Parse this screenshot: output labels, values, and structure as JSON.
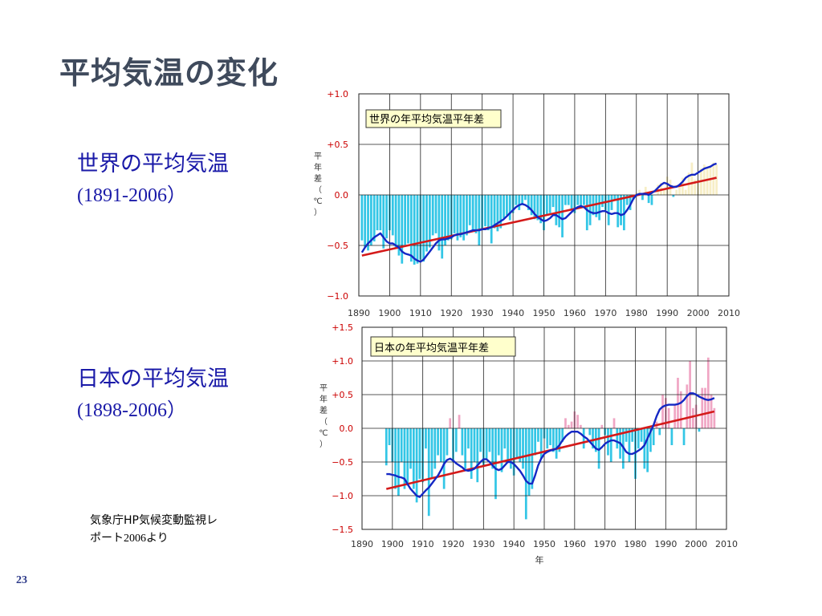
{
  "slide": {
    "title": "平均気温の変化",
    "page_number": "23",
    "source_line1": "気象庁HP気候変動監視レ",
    "source_line2_prefix": "ポート",
    "source_line2_year": "2006",
    "source_line2_suffix": "より"
  },
  "labels": {
    "world_title": "世界の平均気温",
    "world_range": "(1891-2006）",
    "japan_title": "日本の平均気温",
    "japan_range": "(1898-2006）"
  },
  "colors": {
    "bar": "#33c6e6",
    "pos_bar_world": "#f7eec6",
    "pos_bar_japan": "#f0a6c4",
    "smooth_line": "#1427c4",
    "trend_line": "#d41a1a",
    "grid": "#222222",
    "legend_bg": "#ffffcc",
    "tick_red": "#cc0000"
  },
  "chart_data": [
    {
      "type": "bar",
      "title": "世界の年平均気温平年差",
      "ylabel": "平年差（℃）",
      "xlabel": "",
      "xlim": [
        1890,
        2010
      ],
      "ylim": [
        -1.0,
        1.0
      ],
      "y_ticks": [
        1.0,
        0.5,
        0.0,
        -0.5,
        -1.0
      ],
      "y_tick_labels": [
        "+1.0",
        "+0.5",
        "0.0",
        "−0.5",
        "−1.0"
      ],
      "x_ticks": [
        1890,
        1900,
        1910,
        1920,
        1930,
        1940,
        1950,
        1960,
        1970,
        1980,
        1990,
        2000,
        2010
      ],
      "x": [
        1891,
        1892,
        1893,
        1894,
        1895,
        1896,
        1897,
        1898,
        1899,
        1900,
        1901,
        1902,
        1903,
        1904,
        1905,
        1906,
        1907,
        1908,
        1909,
        1910,
        1911,
        1912,
        1913,
        1914,
        1915,
        1916,
        1917,
        1918,
        1919,
        1920,
        1921,
        1922,
        1923,
        1924,
        1925,
        1926,
        1927,
        1928,
        1929,
        1930,
        1931,
        1932,
        1933,
        1934,
        1935,
        1936,
        1937,
        1938,
        1939,
        1940,
        1941,
        1942,
        1943,
        1944,
        1945,
        1946,
        1947,
        1948,
        1949,
        1950,
        1951,
        1952,
        1953,
        1954,
        1955,
        1956,
        1957,
        1958,
        1959,
        1960,
        1961,
        1962,
        1963,
        1964,
        1965,
        1966,
        1967,
        1968,
        1969,
        1970,
        1971,
        1972,
        1973,
        1974,
        1975,
        1976,
        1977,
        1978,
        1979,
        1980,
        1981,
        1982,
        1983,
        1984,
        1985,
        1986,
        1987,
        1988,
        1989,
        1990,
        1991,
        1992,
        1993,
        1994,
        1995,
        1996,
        1997,
        1998,
        1999,
        2000,
        2001,
        2002,
        2003,
        2004,
        2005,
        2006
      ],
      "series": [
        {
          "kind": "annual_bars",
          "values": [
            -0.45,
            -0.52,
            -0.55,
            -0.5,
            -0.46,
            -0.35,
            -0.35,
            -0.53,
            -0.43,
            -0.35,
            -0.4,
            -0.52,
            -0.6,
            -0.68,
            -0.5,
            -0.48,
            -0.66,
            -0.69,
            -0.68,
            -0.64,
            -0.66,
            -0.56,
            -0.52,
            -0.4,
            -0.38,
            -0.55,
            -0.63,
            -0.5,
            -0.45,
            -0.44,
            -0.38,
            -0.45,
            -0.42,
            -0.45,
            -0.4,
            -0.3,
            -0.36,
            -0.38,
            -0.5,
            -0.35,
            -0.31,
            -0.35,
            -0.48,
            -0.33,
            -0.36,
            -0.33,
            -0.23,
            -0.2,
            -0.25,
            -0.18,
            -0.1,
            -0.15,
            -0.1,
            -0.05,
            -0.15,
            -0.2,
            -0.24,
            -0.25,
            -0.28,
            -0.35,
            -0.2,
            -0.18,
            -0.12,
            -0.3,
            -0.32,
            -0.42,
            -0.1,
            -0.1,
            -0.15,
            -0.18,
            -0.1,
            -0.12,
            -0.1,
            -0.35,
            -0.3,
            -0.2,
            -0.22,
            -0.25,
            -0.12,
            -0.15,
            -0.3,
            -0.15,
            -0.05,
            -0.32,
            -0.3,
            -0.35,
            -0.1,
            -0.15,
            -0.05,
            0.02,
            0.05,
            -0.05,
            0.08,
            -0.08,
            -0.1,
            0.0,
            0.1,
            0.12,
            0.05,
            0.18,
            0.15,
            -0.02,
            0.05,
            0.1,
            0.17,
            0.05,
            0.22,
            0.32,
            0.15,
            0.15,
            0.26,
            0.3,
            0.28,
            0.28,
            0.32,
            0.3
          ]
        },
        {
          "kind": "smoothed_5yr",
          "values": [
            -0.57,
            -0.52,
            -0.48,
            -0.45,
            -0.42,
            -0.4,
            -0.38,
            -0.42,
            -0.46,
            -0.48,
            -0.48,
            -0.5,
            -0.52,
            -0.56,
            -0.58,
            -0.59,
            -0.6,
            -0.63,
            -0.65,
            -0.66,
            -0.64,
            -0.6,
            -0.56,
            -0.52,
            -0.48,
            -0.45,
            -0.44,
            -0.44,
            -0.43,
            -0.42,
            -0.4,
            -0.39,
            -0.39,
            -0.38,
            -0.37,
            -0.36,
            -0.35,
            -0.35,
            -0.35,
            -0.34,
            -0.34,
            -0.33,
            -0.32,
            -0.3,
            -0.28,
            -0.26,
            -0.24,
            -0.21,
            -0.18,
            -0.15,
            -0.12,
            -0.1,
            -0.09,
            -0.1,
            -0.12,
            -0.15,
            -0.19,
            -0.22,
            -0.24,
            -0.26,
            -0.25,
            -0.23,
            -0.2,
            -0.2,
            -0.22,
            -0.24,
            -0.23,
            -0.2,
            -0.17,
            -0.14,
            -0.12,
            -0.11,
            -0.12,
            -0.15,
            -0.17,
            -0.18,
            -0.18,
            -0.17,
            -0.16,
            -0.16,
            -0.18,
            -0.19,
            -0.18,
            -0.18,
            -0.2,
            -0.19,
            -0.15,
            -0.1,
            -0.04,
            0.0,
            0.01,
            0.01,
            0.01,
            0.0,
            0.02,
            0.04,
            0.07,
            0.1,
            0.12,
            0.11,
            0.09,
            0.08,
            0.08,
            0.1,
            0.13,
            0.17,
            0.19,
            0.2,
            0.2,
            0.22,
            0.24,
            0.26,
            0.27,
            0.28,
            0.3,
            0.31
          ]
        },
        {
          "kind": "linear_trend",
          "x": [
            1891,
            2006
          ],
          "values": [
            -0.6,
            0.17
          ]
        }
      ],
      "grid": true
    },
    {
      "type": "bar",
      "title": "日本の年平均気温平年差",
      "ylabel": "平年差（℃）",
      "xlabel": "年",
      "xlim": [
        1890,
        2010
      ],
      "ylim": [
        -1.5,
        1.5
      ],
      "y_ticks": [
        1.5,
        1.0,
        0.5,
        0.0,
        -0.5,
        -1.0,
        -1.5
      ],
      "y_tick_labels": [
        "+1.5",
        "+1.0",
        "+0.5",
        "0.0",
        "−0.5",
        "−1.0",
        "−1.5"
      ],
      "x_ticks": [
        1890,
        1900,
        1910,
        1920,
        1930,
        1940,
        1950,
        1960,
        1970,
        1980,
        1990,
        2000,
        2010
      ],
      "x": [
        1898,
        1899,
        1900,
        1901,
        1902,
        1903,
        1904,
        1905,
        1906,
        1907,
        1908,
        1909,
        1910,
        1911,
        1912,
        1913,
        1914,
        1915,
        1916,
        1917,
        1918,
        1919,
        1920,
        1921,
        1922,
        1923,
        1924,
        1925,
        1926,
        1927,
        1928,
        1929,
        1930,
        1931,
        1932,
        1933,
        1934,
        1935,
        1936,
        1937,
        1938,
        1939,
        1940,
        1941,
        1942,
        1943,
        1944,
        1945,
        1946,
        1947,
        1948,
        1949,
        1950,
        1951,
        1952,
        1953,
        1954,
        1955,
        1956,
        1957,
        1958,
        1959,
        1960,
        1961,
        1962,
        1963,
        1964,
        1965,
        1966,
        1967,
        1968,
        1969,
        1970,
        1971,
        1972,
        1973,
        1974,
        1975,
        1976,
        1977,
        1978,
        1979,
        1980,
        1981,
        1982,
        1983,
        1984,
        1985,
        1986,
        1987,
        1988,
        1989,
        1990,
        1991,
        1992,
        1993,
        1994,
        1995,
        1996,
        1997,
        1998,
        1999,
        2000,
        2001,
        2002,
        2003,
        2004,
        2005,
        2006
      ],
      "series": [
        {
          "kind": "annual_bars",
          "values": [
            -0.55,
            -0.25,
            -0.5,
            -0.9,
            -1.0,
            -0.5,
            -0.9,
            -0.85,
            -0.6,
            -0.9,
            -1.1,
            -0.75,
            -0.8,
            -0.3,
            -1.3,
            -0.75,
            -0.6,
            -0.4,
            -0.5,
            -0.9,
            -0.4,
            0.15,
            -0.5,
            -0.35,
            0.2,
            -0.4,
            -0.6,
            -0.3,
            -0.75,
            -0.5,
            -0.8,
            -0.35,
            -0.55,
            -0.45,
            -0.35,
            -0.6,
            -1.05,
            -0.4,
            -0.65,
            -0.3,
            -0.5,
            -0.6,
            -0.7,
            -0.45,
            -0.5,
            -0.6,
            -1.35,
            -1.0,
            -0.9,
            -0.4,
            -0.2,
            -0.45,
            -0.15,
            -0.3,
            -0.25,
            -0.35,
            -0.45,
            -0.35,
            -0.2,
            0.15,
            0.05,
            0.1,
            0.25,
            0.2,
            0.05,
            -0.3,
            0.0,
            -0.1,
            -0.3,
            -0.35,
            -0.6,
            0.05,
            -0.1,
            -0.4,
            -0.5,
            0.15,
            -0.3,
            -0.45,
            -0.6,
            -0.2,
            -0.5,
            -0.2,
            -0.75,
            -0.3,
            -0.2,
            -0.6,
            -0.65,
            -0.35,
            -0.25,
            0.1,
            -0.1,
            0.5,
            0.45,
            0.3,
            -0.25,
            0.35,
            0.75,
            0.55,
            -0.25,
            0.65,
            1.0,
            0.3,
            0.35,
            -0.05,
            0.6,
            0.6,
            1.05,
            0.5,
            0.3
          ]
        },
        {
          "kind": "smoothed_5yr",
          "values": [
            -0.68,
            -0.68,
            -0.69,
            -0.7,
            -0.72,
            -0.73,
            -0.75,
            -0.83,
            -0.9,
            -0.95,
            -1.0,
            -1.02,
            -0.97,
            -0.92,
            -0.88,
            -0.82,
            -0.76,
            -0.7,
            -0.62,
            -0.53,
            -0.47,
            -0.45,
            -0.48,
            -0.52,
            -0.55,
            -0.58,
            -0.62,
            -0.63,
            -0.62,
            -0.6,
            -0.55,
            -0.5,
            -0.46,
            -0.46,
            -0.5,
            -0.55,
            -0.6,
            -0.62,
            -0.6,
            -0.55,
            -0.5,
            -0.5,
            -0.53,
            -0.58,
            -0.63,
            -0.7,
            -0.78,
            -0.82,
            -0.82,
            -0.7,
            -0.55,
            -0.45,
            -0.38,
            -0.35,
            -0.33,
            -0.32,
            -0.3,
            -0.25,
            -0.18,
            -0.12,
            -0.08,
            -0.05,
            -0.05,
            -0.05,
            -0.08,
            -0.12,
            -0.15,
            -0.2,
            -0.25,
            -0.3,
            -0.32,
            -0.28,
            -0.23,
            -0.2,
            -0.18,
            -0.18,
            -0.2,
            -0.22,
            -0.28,
            -0.35,
            -0.38,
            -0.38,
            -0.36,
            -0.33,
            -0.3,
            -0.25,
            -0.15,
            -0.05,
            0.05,
            0.18,
            0.28,
            0.32,
            0.34,
            0.35,
            0.35,
            0.35,
            0.36,
            0.38,
            0.42,
            0.48,
            0.52,
            0.52,
            0.5,
            0.47,
            0.45,
            0.43,
            0.42,
            0.43,
            0.45
          ]
        },
        {
          "kind": "linear_trend",
          "x": [
            1898,
            2006
          ],
          "values": [
            -0.9,
            0.25
          ]
        }
      ],
      "grid": true
    }
  ]
}
